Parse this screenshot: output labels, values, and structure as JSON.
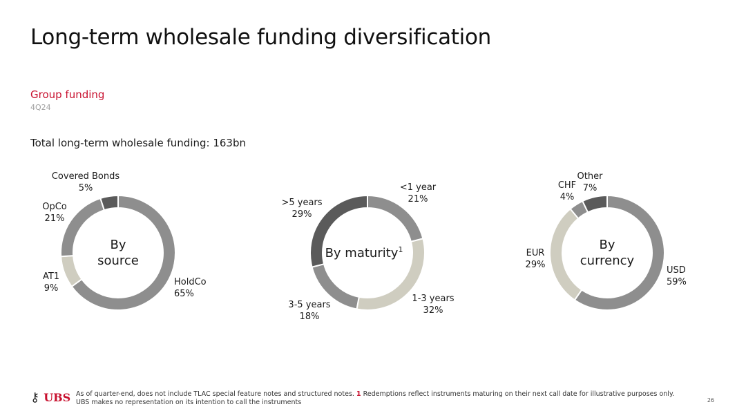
{
  "title": "Long-term wholesale funding diversification",
  "section": "Group funding",
  "period": "4Q24",
  "total_label": "Total long-term wholesale funding: 163bn",
  "chart_data": [
    {
      "type": "pie",
      "center_label": [
        "By",
        "source"
      ],
      "slices": [
        {
          "name": "HoldCo",
          "value": 65,
          "label": "65%",
          "color": "#8e8e8e"
        },
        {
          "name": "AT1",
          "value": 9,
          "label": "9%",
          "color": "#cfcdc0"
        },
        {
          "name": "OpCo",
          "value": 21,
          "label": "21%",
          "color": "#8e8e8e"
        },
        {
          "name": "Covered Bonds",
          "value": 5,
          "label": "5%",
          "color": "#5a5a5a"
        }
      ]
    },
    {
      "type": "pie",
      "center_label": [
        "By maturity",
        "1"
      ],
      "slices": [
        {
          "name": "<1 year",
          "value": 21,
          "label": "21%",
          "color": "#8e8e8e"
        },
        {
          "name": "1-3 years",
          "value": 32,
          "label": "32%",
          "color": "#cfcdc0"
        },
        {
          "name": "3-5 years",
          "value": 18,
          "label": "18%",
          "color": "#8e8e8e"
        },
        {
          "name": ">5 years",
          "value": 29,
          "label": "29%",
          "color": "#5a5a5a"
        }
      ]
    },
    {
      "type": "pie",
      "center_label": [
        "By",
        "currency"
      ],
      "slices": [
        {
          "name": "USD",
          "value": 59,
          "label": "59%",
          "color": "#8e8e8e"
        },
        {
          "name": "EUR",
          "value": 29,
          "label": "29%",
          "color": "#cfcdc0"
        },
        {
          "name": "CHF",
          "value": 4,
          "label": "4%",
          "color": "#8e8e8e"
        },
        {
          "name": "Other",
          "value": 7,
          "label": "7%",
          "color": "#5a5a5a"
        }
      ]
    }
  ],
  "footer": {
    "logo_text": "UBS",
    "note_prefix": "As of quarter-end, does not include TLAC special feature notes and structured notes. ",
    "note_num": "1",
    "note_rest": " Redemptions reflect instruments maturing on their next call date for illustrative purposes only. UBS makes no representation on its intention to call the instruments",
    "page": "26"
  }
}
